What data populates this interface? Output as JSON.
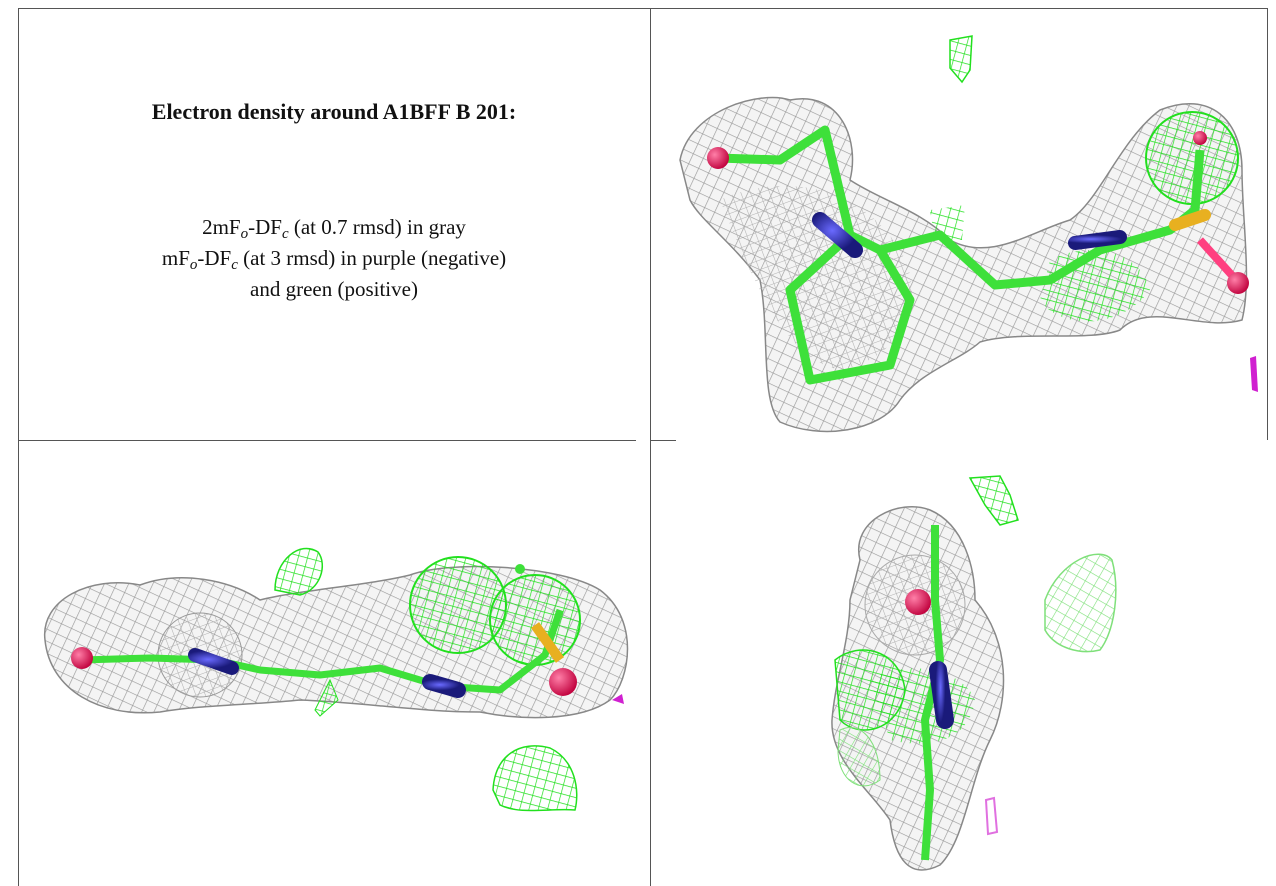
{
  "title": "Electron density around A1BFF B 201:",
  "legend": [
    [
      "2mF",
      "o",
      "-DF",
      "c",
      " (at 0.7 rmsd) in gray"
    ],
    [
      "mF",
      "o",
      "-DF",
      "c",
      " (at 3 rmsd) in purple (negative)"
    ],
    [
      "and green (positive)"
    ]
  ]
}
